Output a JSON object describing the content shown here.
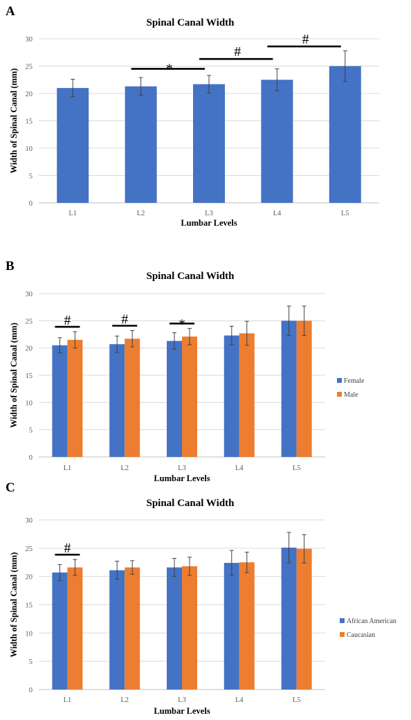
{
  "chart_data": [
    {
      "type": "bar",
      "panel": "A",
      "title": "Spinal Canal Width",
      "xlabel": "Lumbar Levels",
      "ylabel": "Width of Spinal Canal (mm)",
      "ylim": [
        0,
        30
      ],
      "yticks": [
        0,
        5,
        10,
        15,
        20,
        25,
        30
      ],
      "categories": [
        "L1",
        "L2",
        "L3",
        "L4",
        "L5"
      ],
      "series": [
        {
          "values": [
            21.0,
            21.3,
            21.7,
            22.5,
            25.0
          ],
          "errors": [
            1.6,
            1.6,
            1.6,
            2.0,
            2.8
          ],
          "color": "#4472C4"
        }
      ],
      "legend": [],
      "significance": [
        {
          "symbol": "*",
          "from": "L2",
          "to": "L3"
        },
        {
          "symbol": "#",
          "from": "L3",
          "to": "L4"
        },
        {
          "symbol": "#",
          "from": "L4",
          "to": "L5"
        }
      ],
      "grid": true
    },
    {
      "type": "bar",
      "panel": "B",
      "title": "Spinal Canal Width",
      "xlabel": "Lumbar Levels",
      "ylabel": "Width of Spinal Canal (mm)",
      "ylim": [
        0,
        30
      ],
      "yticks": [
        0,
        5,
        10,
        15,
        20,
        25,
        30
      ],
      "categories": [
        "L1",
        "L2",
        "L3",
        "L4",
        "L5"
      ],
      "series": [
        {
          "name": "Female",
          "values": [
            20.5,
            20.7,
            21.3,
            22.3,
            25.0
          ],
          "errors": [
            1.4,
            1.5,
            1.5,
            1.7,
            2.7
          ],
          "color": "#4472C4"
        },
        {
          "name": "Male",
          "values": [
            21.5,
            21.7,
            22.1,
            22.7,
            25.0
          ],
          "errors": [
            1.5,
            1.5,
            1.5,
            2.2,
            2.7
          ],
          "color": "#ED7D31"
        }
      ],
      "legend": [
        "Female",
        "Male"
      ],
      "legend_position": "right",
      "significance": [
        {
          "symbol": "#",
          "category": "L1"
        },
        {
          "symbol": "#",
          "category": "L2"
        },
        {
          "symbol": "*",
          "category": "L3"
        }
      ],
      "grid": true
    },
    {
      "type": "bar",
      "panel": "C",
      "title": "Spinal Canal Width",
      "xlabel": "Lumbar Levels",
      "ylabel": "Width of Spinal Canal (mm)",
      "ylim": [
        0,
        30
      ],
      "yticks": [
        0,
        5,
        10,
        15,
        20,
        25,
        30
      ],
      "categories": [
        "L1",
        "L2",
        "L3",
        "L4",
        "L5"
      ],
      "series": [
        {
          "name": "African American",
          "values": [
            20.7,
            21.1,
            21.6,
            22.4,
            25.1
          ],
          "errors": [
            1.4,
            1.6,
            1.6,
            2.2,
            2.7
          ],
          "color": "#4472C4"
        },
        {
          "name": "Caucasian",
          "values": [
            21.6,
            21.6,
            21.8,
            22.5,
            24.9
          ],
          "errors": [
            1.4,
            1.2,
            1.6,
            1.8,
            2.5
          ],
          "color": "#ED7D31"
        }
      ],
      "legend": [
        "African American",
        "Caucasian"
      ],
      "legend_position": "right",
      "significance": [
        {
          "symbol": "#",
          "category": "L1"
        }
      ],
      "grid": true
    }
  ]
}
